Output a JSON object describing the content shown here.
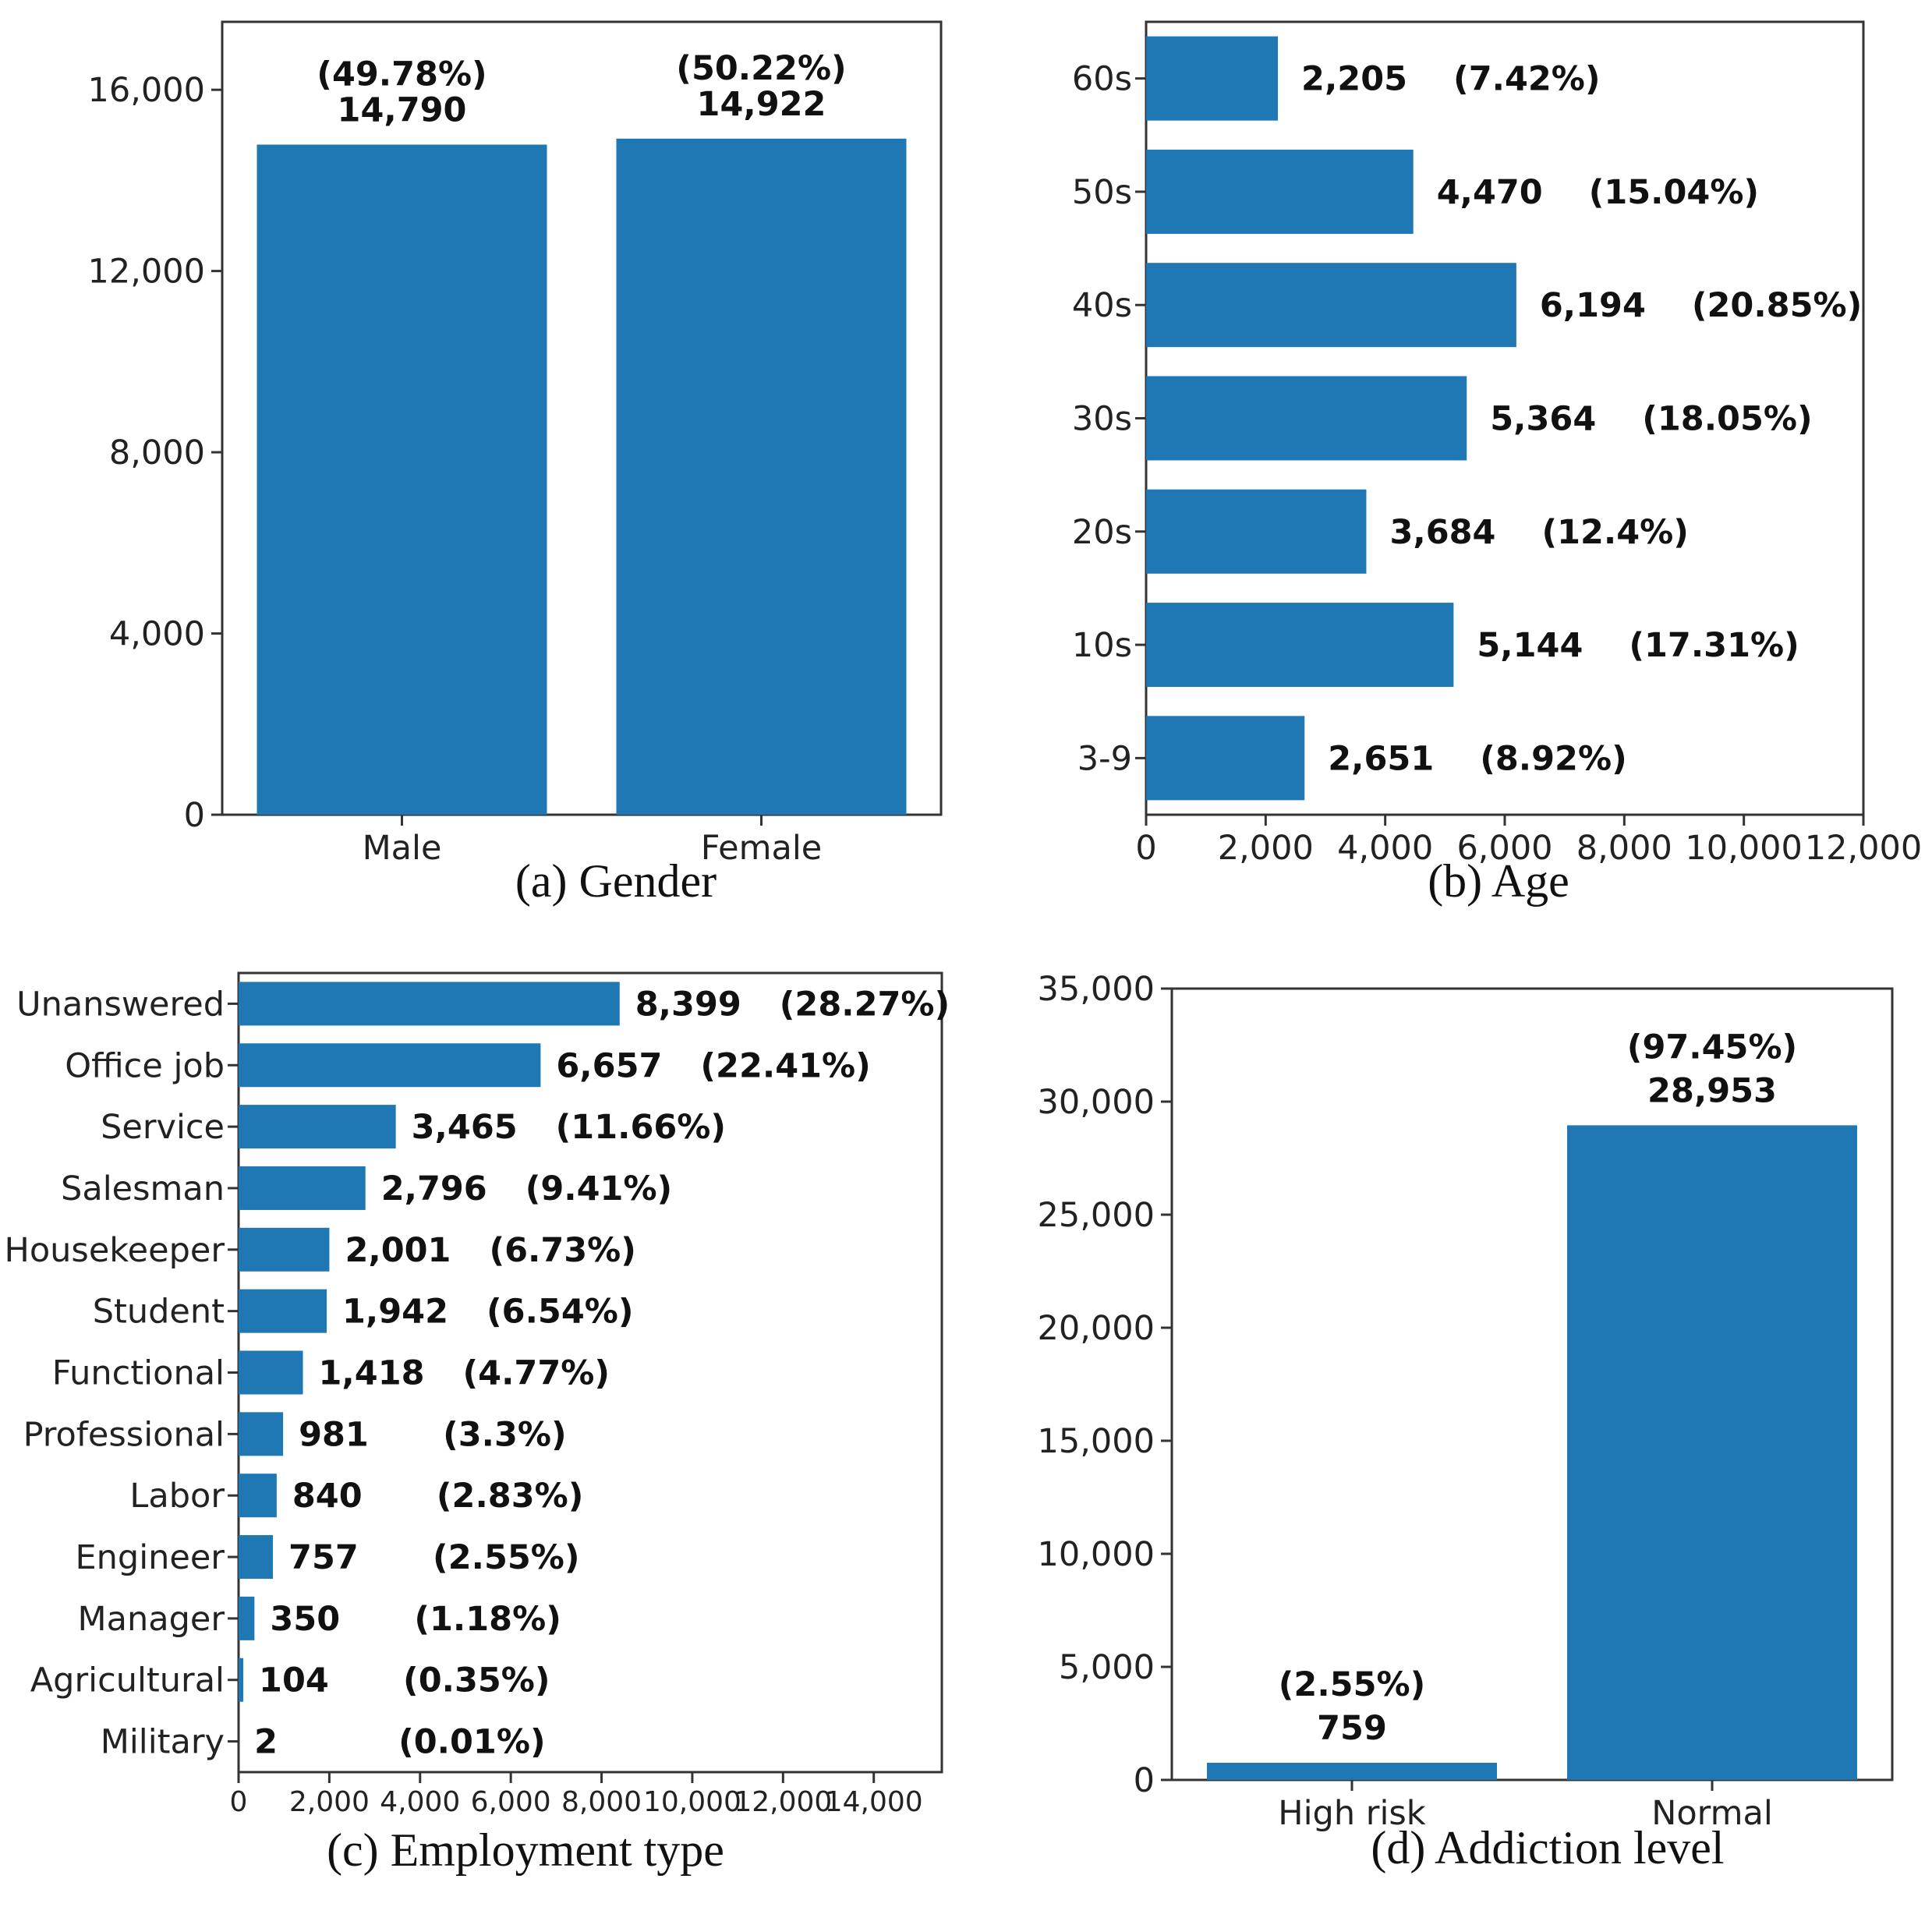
{
  "colors": {
    "bar": "#1f77b4"
  },
  "chart_data": [
    {
      "id": "gender",
      "type": "bar",
      "orientation": "vertical",
      "caption": "(a) Gender",
      "categories": [
        "Male",
        "Female"
      ],
      "values": [
        14790,
        14922
      ],
      "value_labels": [
        "14,790",
        "14,922"
      ],
      "pct_labels": [
        "(49.78%)",
        "(50.22%)"
      ],
      "ylim": [
        0,
        17500
      ],
      "yticks": [
        0,
        4000,
        8000,
        12000,
        16000
      ],
      "ytick_labels": [
        "0",
        "4,000",
        "8,000",
        "12,000",
        "16,000"
      ]
    },
    {
      "id": "age",
      "type": "bar",
      "orientation": "horizontal",
      "caption": "(b) Age",
      "categories": [
        "60s",
        "50s",
        "40s",
        "30s",
        "20s",
        "10s",
        "3-9"
      ],
      "values": [
        2205,
        4470,
        6194,
        5364,
        3684,
        5144,
        2651
      ],
      "value_labels": [
        "2,205",
        "4,470",
        "6,194",
        "5,364",
        "3,684",
        "5,144",
        "2,651"
      ],
      "pct_labels": [
        "(7.42%)",
        "(15.04%)",
        "(20.85%)",
        "(18.05%)",
        "(12.4%)",
        "(17.31%)",
        "(8.92%)"
      ],
      "xlim": [
        0,
        12000
      ],
      "xticks": [
        0,
        2000,
        4000,
        6000,
        8000,
        10000,
        12000
      ],
      "xtick_labels": [
        "0",
        "2,000",
        "4,000",
        "6,000",
        "8,000",
        "10,000",
        "12,000"
      ]
    },
    {
      "id": "employment",
      "type": "bar",
      "orientation": "horizontal",
      "caption": "(c) Employment type",
      "categories": [
        "Unanswered",
        "Office job",
        "Service",
        "Salesman",
        "Housekeeper",
        "Student",
        "Functional",
        "Professional",
        "Labor",
        "Engineer",
        "Manager",
        "Agricultural",
        "Military"
      ],
      "values": [
        8399,
        6657,
        3465,
        2796,
        2001,
        1942,
        1418,
        981,
        840,
        757,
        350,
        104,
        2
      ],
      "value_labels": [
        "8,399",
        "6,657",
        "3,465",
        "2,796",
        "2,001",
        "1,942",
        "1,418",
        "981",
        "840",
        "757",
        "350",
        "104",
        "2"
      ],
      "pct_labels": [
        "(28.27%)",
        "(22.41%)",
        "(11.66%)",
        "(9.41%)",
        "(6.73%)",
        "(6.54%)",
        "(4.77%)",
        "(3.3%)",
        "(2.83%)",
        "(2.55%)",
        "(1.18%)",
        "(0.35%)",
        "(0.01%)"
      ],
      "xlim": [
        0,
        15500
      ],
      "xticks": [
        0,
        2000,
        4000,
        6000,
        8000,
        10000,
        12000,
        14000
      ],
      "xtick_labels": [
        "0",
        "2,000",
        "4,000",
        "6,000",
        "8,000",
        "10,000",
        "12,000",
        "14,000"
      ]
    },
    {
      "id": "addiction",
      "type": "bar",
      "orientation": "vertical",
      "caption": "(d) Addiction level",
      "categories": [
        "High risk",
        "Normal"
      ],
      "values": [
        759,
        28953
      ],
      "value_labels": [
        "759",
        "28,953"
      ],
      "pct_labels": [
        "(2.55%)",
        "(97.45%)"
      ],
      "ylim": [
        0,
        35000
      ],
      "yticks": [
        0,
        5000,
        10000,
        15000,
        20000,
        25000,
        30000,
        35000
      ],
      "ytick_labels": [
        "0",
        "5,000",
        "10,000",
        "15,000",
        "20,000",
        "25,000",
        "30,000",
        "35,000"
      ]
    }
  ]
}
